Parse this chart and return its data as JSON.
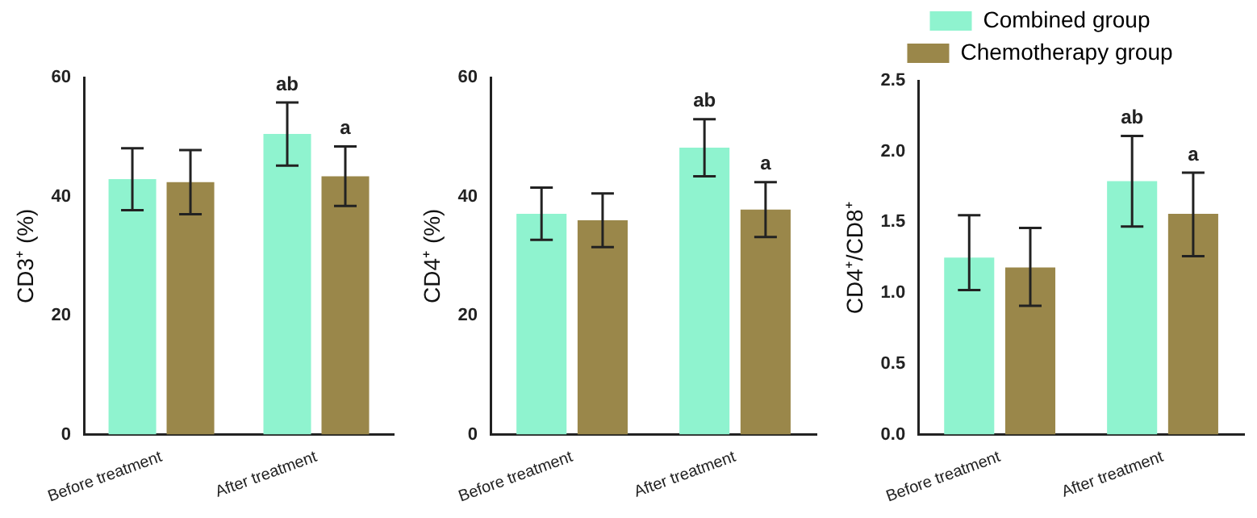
{
  "chart_data": [
    {
      "type": "bar",
      "ylabel": "CD3⁺ (%)",
      "categories": [
        "Before treatment",
        "After treatment"
      ],
      "ylim": [
        0,
        60
      ],
      "yticks": [
        0,
        20,
        40,
        60
      ],
      "grid": false,
      "legend": false,
      "series": [
        {
          "color": "#8ff3cf",
          "values": [
            42.9,
            50.5
          ],
          "errors": [
            5.2,
            5.3
          ],
          "value_labels": [
            null,
            "ab"
          ]
        },
        {
          "color": "#9a874a",
          "values": [
            42.4,
            43.4
          ],
          "errors": [
            5.4,
            5
          ],
          "value_labels": [
            null,
            "a"
          ]
        }
      ]
    },
    {
      "type": "bar",
      "ylabel": "CD4⁺ (%)",
      "categories": [
        "Before treatment",
        "After treatment"
      ],
      "ylim": [
        0,
        60
      ],
      "yticks": [
        0,
        20,
        40,
        60
      ],
      "grid": false,
      "legend": false,
      "series": [
        {
          "color": "#8ff3cf",
          "values": [
            37.1,
            48.2
          ],
          "errors": [
            4.4,
            4.8
          ],
          "value_labels": [
            null,
            "ab"
          ]
        },
        {
          "color": "#9a874a",
          "values": [
            36,
            37.8
          ],
          "errors": [
            4.5,
            4.6
          ],
          "value_labels": [
            null,
            "a"
          ]
        }
      ]
    },
    {
      "type": "bar",
      "ylabel": "CD4⁺/CD8⁺",
      "categories": [
        "Before treatment",
        "After treatment"
      ],
      "ylim": [
        0,
        2.5
      ],
      "yticks": [
        {
          "value": 0,
          "label": "0.0"
        },
        {
          "value": 0.5,
          "label": "0.5"
        },
        {
          "value": 1,
          "label": "1.0"
        },
        {
          "value": 1.5,
          "label": "1.5"
        },
        {
          "value": 2,
          "label": "2.0"
        },
        {
          "value": 2.5,
          "label": "2.5"
        }
      ],
      "grid": false,
      "legend": "top",
      "series": [
        {
          "name": "Combined group",
          "color": "#8ff3cf",
          "values": [
            1.25,
            1.79
          ],
          "errors": [
            [
              1.02,
              1.55
            ],
            [
              1.47,
              2.11
            ]
          ],
          "value_labels": [
            null,
            "ab"
          ]
        },
        {
          "name": "Chemotherapy group",
          "color": "#9a874a",
          "values": [
            1.18,
            1.56
          ],
          "errors": [
            [
              0.91,
              1.46
            ],
            [
              1.26,
              1.85
            ]
          ],
          "value_labels": [
            null,
            "a"
          ]
        }
      ]
    }
  ]
}
